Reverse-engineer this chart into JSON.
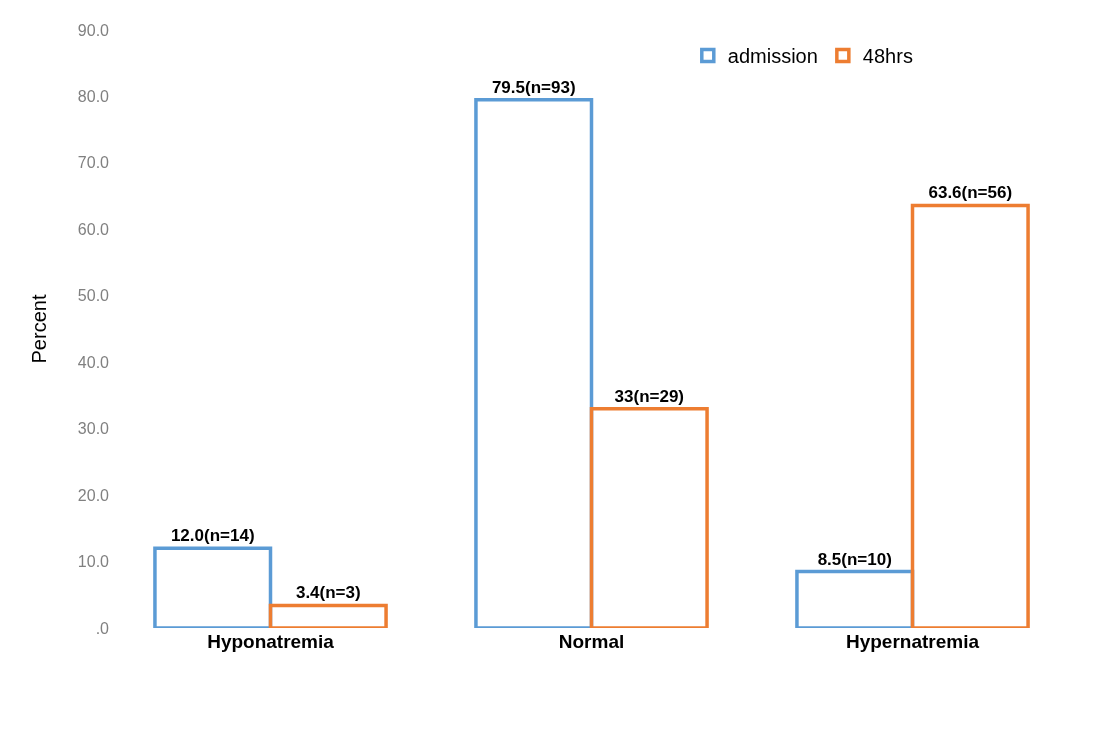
{
  "chart_data": {
    "type": "bar",
    "ylabel": "Percent",
    "categories": [
      "Hyponatremia",
      "Normal",
      "Hypernatremia"
    ],
    "series": [
      {
        "name": "admission",
        "color": "#5b9bd5",
        "values": [
          12.0,
          79.5,
          8.5
        ],
        "value_labels": [
          "12.0(n=14)",
          "79.5(n=93)",
          "8.5(n=10)"
        ]
      },
      {
        "name": "48hrs",
        "color": "#ed7d31",
        "values": [
          3.4,
          33,
          63.6
        ],
        "value_labels": [
          "3.4(n=3)",
          "33(n=29)",
          "63.6(n=56)"
        ]
      }
    ],
    "ylim": [
      0,
      90
    ],
    "yticks": [
      {
        "value": 0,
        "label": ".0"
      },
      {
        "value": 10,
        "label": "10.0"
      },
      {
        "value": 20,
        "label": "20.0"
      },
      {
        "value": 30,
        "label": "30.0"
      },
      {
        "value": 40,
        "label": "40.0"
      },
      {
        "value": 50,
        "label": "50.0"
      },
      {
        "value": 60,
        "label": "60.0"
      },
      {
        "value": 70,
        "label": "70.0"
      },
      {
        "value": 80,
        "label": "80.0"
      },
      {
        "value": 90,
        "label": "90.0"
      }
    ],
    "legend": "top right"
  }
}
